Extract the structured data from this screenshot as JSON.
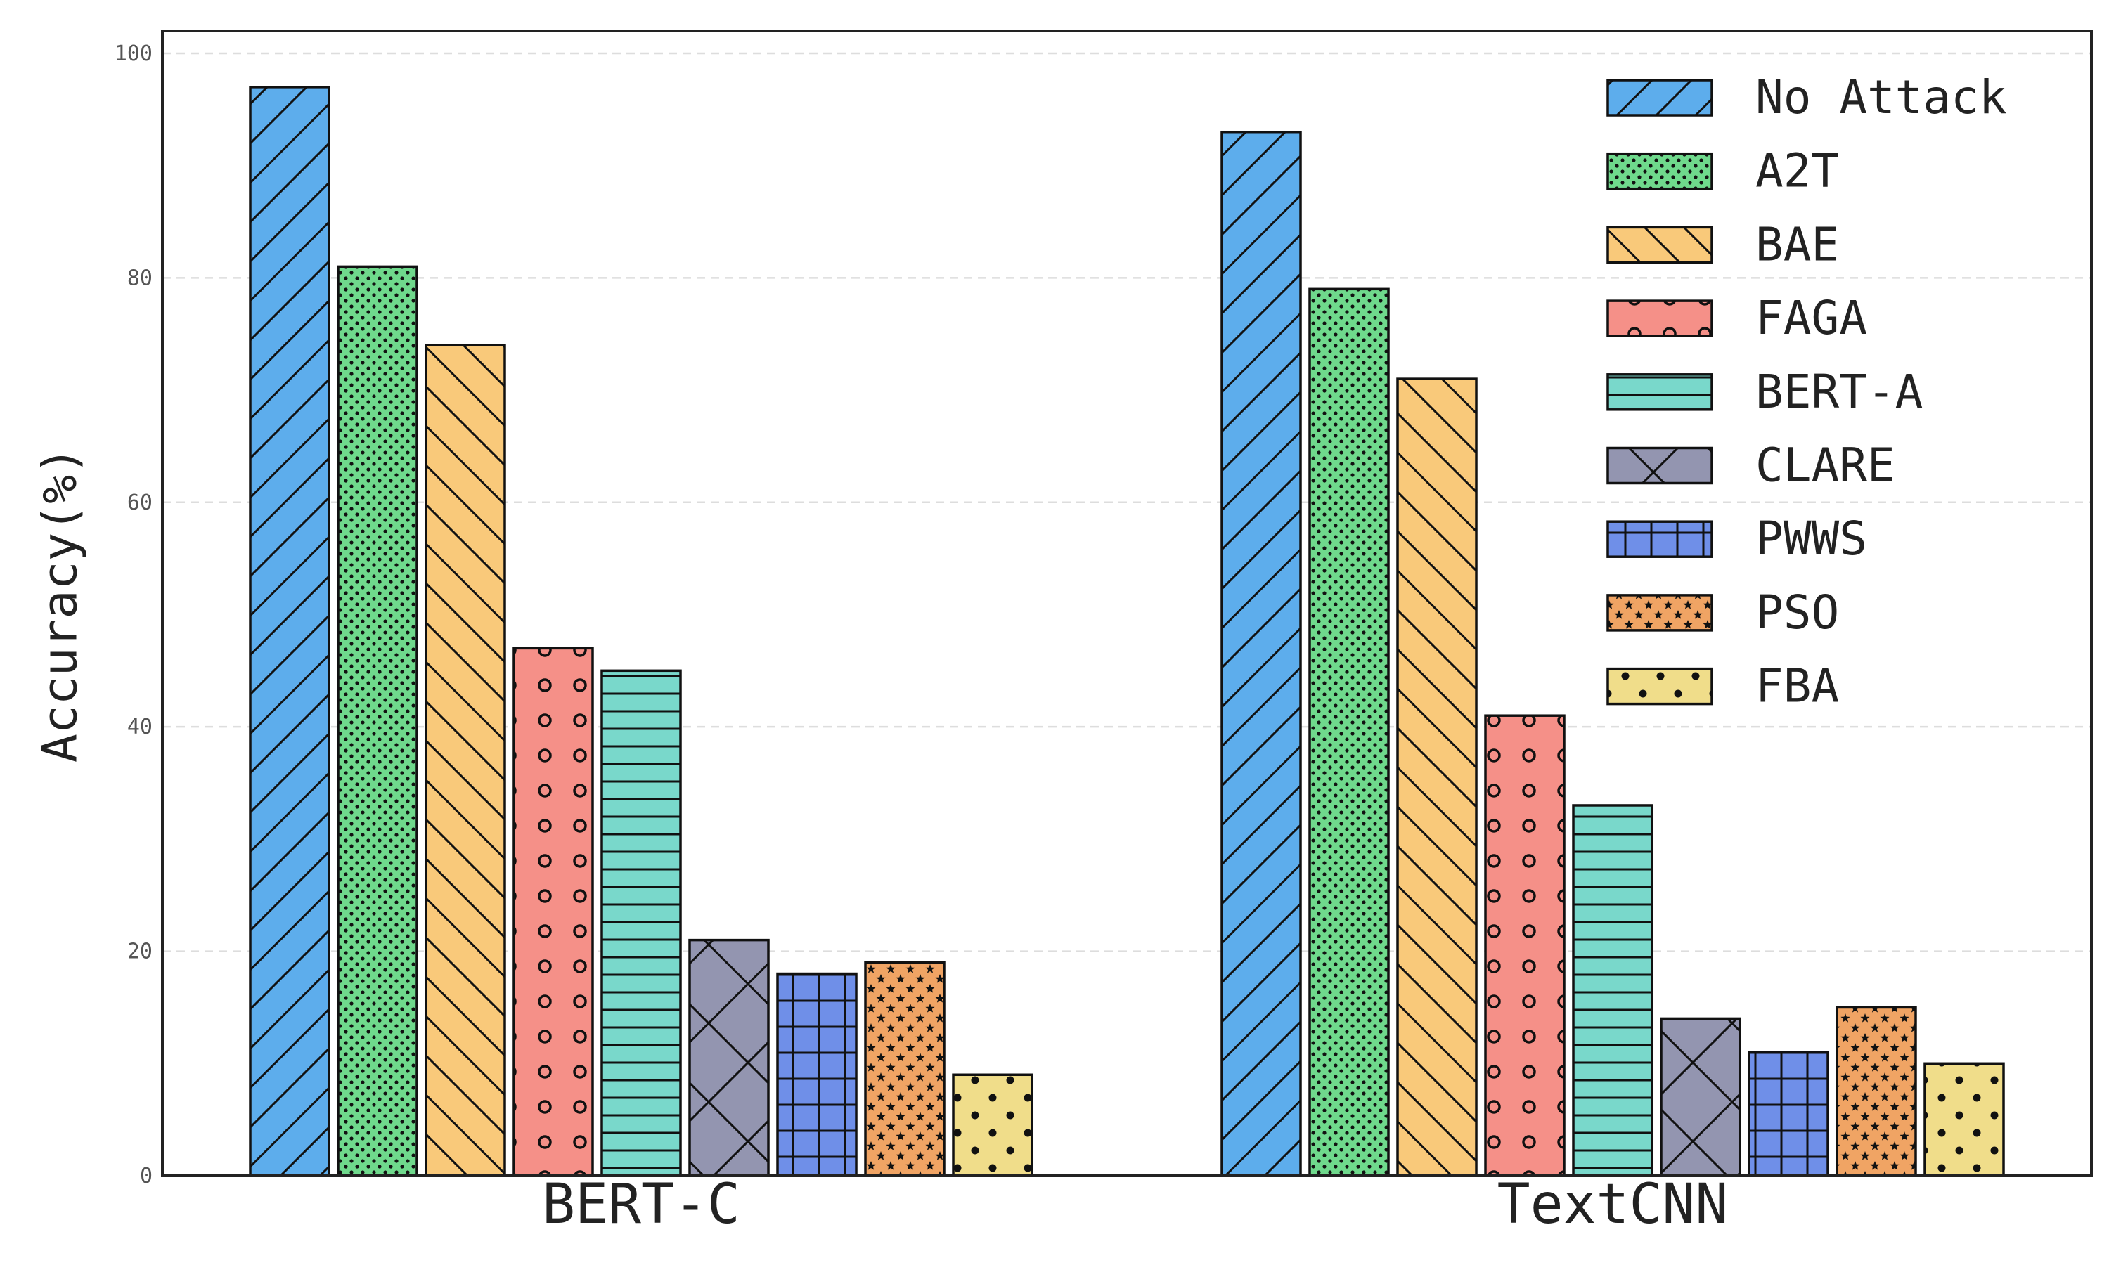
{
  "chart_data": {
    "type": "bar",
    "title": "",
    "xlabel": "",
    "ylabel": "Accuracy(%)",
    "ylim": [
      0,
      102
    ],
    "yticks": [
      0,
      20,
      40,
      60,
      80,
      100
    ],
    "grid": "horizontal dashed",
    "legend_position": "top-right",
    "categories": [
      "BERT-C",
      "TextCNN"
    ],
    "series": [
      {
        "name": "No Attack",
        "values": [
          97,
          93
        ],
        "color": "#5DADEC",
        "hatch": "diagonal-forward"
      },
      {
        "name": "A2T",
        "values": [
          81,
          79
        ],
        "color": "#6FD98C",
        "hatch": "small-dots"
      },
      {
        "name": "BAE",
        "values": [
          74,
          71
        ],
        "color": "#F9C97A",
        "hatch": "diagonal-back"
      },
      {
        "name": "FAGA",
        "values": [
          47,
          41
        ],
        "color": "#F59088",
        "hatch": "circles"
      },
      {
        "name": "BERT-A",
        "values": [
          45,
          33
        ],
        "color": "#79D8CB",
        "hatch": "horizontal"
      },
      {
        "name": "CLARE",
        "values": [
          21,
          14
        ],
        "color": "#9395B0",
        "hatch": "cross"
      },
      {
        "name": "PWWS",
        "values": [
          18,
          11
        ],
        "color": "#6F8FE8",
        "hatch": "grid"
      },
      {
        "name": "PSO",
        "values": [
          19,
          15
        ],
        "color": "#F0A464",
        "hatch": "stars"
      },
      {
        "name": "FBA",
        "values": [
          9,
          10
        ],
        "color": "#F0DD8A",
        "hatch": "big-dots"
      }
    ]
  }
}
